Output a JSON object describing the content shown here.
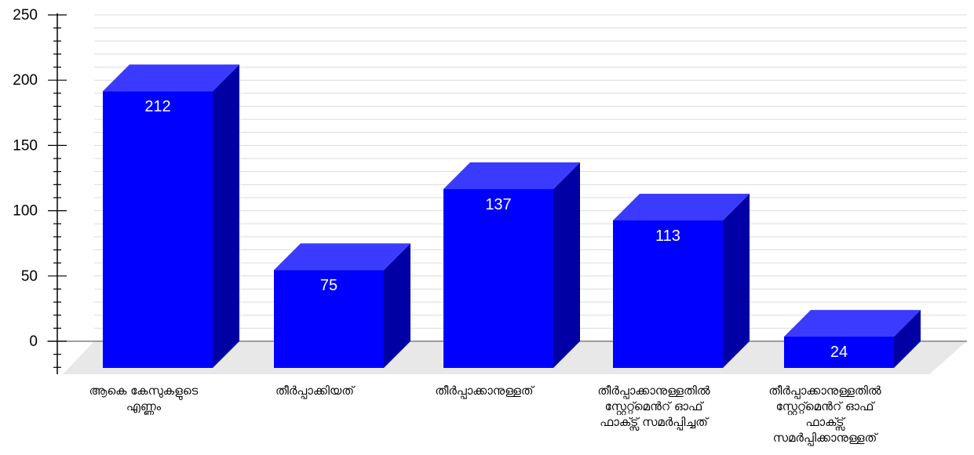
{
  "chart_data": {
    "type": "bar",
    "categories": [
      "ആകെ കേസുകളുടെ എണ്ണം",
      "തീർപ്പാക്കിയത്",
      "തീർപ്പാക്കാനുള്ളത്",
      "തീർപ്പാക്കാനുള്ളതിൽ സ്റ്റേറ്റ്മെൻറ് ഓഫ് ഫാക്ട്സ് സമർപ്പിച്ചത്",
      "തീർപ്പാക്കാനുള്ളതിൽ സ്റ്റേറ്റ്മെൻറ് ഓഫ് ഫാക്ട്സ് സമർപ്പിക്കാനുള്ളത്"
    ],
    "category_lines": [
      [
        "ആകെ കേസുകളുടെ",
        "എണ്ണം"
      ],
      [
        "തീർപ്പാക്കിയത്"
      ],
      [
        "തീർപ്പാക്കാനുള്ളത്"
      ],
      [
        "തീർപ്പാക്കാനുള്ളതിൽ",
        "സ്റ്റേറ്റ്മെൻറ് ഓഫ്",
        "ഫാക്ട്സ് സമർപ്പിച്ചത്"
      ],
      [
        "തീർപ്പാക്കാനുള്ളതിൽ",
        "സ്റ്റേറ്റ്മെൻറ് ഓഫ്",
        "ഫാക്ട്സ്",
        "സമർപ്പിക്കാനുള്ളത്"
      ]
    ],
    "values": [
      212,
      75,
      137,
      113,
      24
    ],
    "value_labels": [
      "212",
      "75",
      "137",
      "113",
      "24"
    ],
    "ylim": [
      0,
      250
    ],
    "yticks": [
      0,
      50,
      100,
      150,
      200,
      250
    ],
    "ytick_labels": [
      "0",
      "50",
      "100",
      "150",
      "200",
      "250"
    ],
    "minor_tick_step": 10,
    "grid": true,
    "style": "3d",
    "title": "",
    "xlabel": "",
    "ylabel": "",
    "colors": {
      "bar_front": "#0000ff",
      "bar_top": "#3b3bff",
      "bar_side": "#0000a5",
      "floor": "#e8e8e8",
      "grid": "#dcdcdc",
      "baseline": "#808080",
      "axis": "#000000"
    }
  }
}
